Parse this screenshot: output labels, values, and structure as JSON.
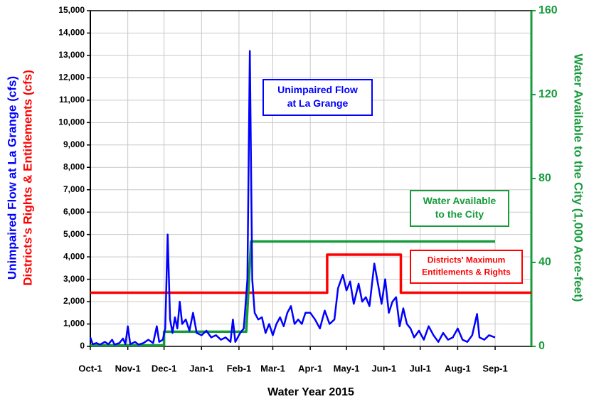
{
  "chart_data": {
    "type": "line",
    "xlabel": "Water Year 2015",
    "ylabel": [
      "Unimpaired Flow at La Grange (cfs)",
      "Districts's Rights & Entitlements (cfs)"
    ],
    "y2label": "Water Available to the City (1,000 Acre-feet)",
    "xlim": [
      0,
      365
    ],
    "xticks": [
      {
        "value": 0,
        "label": "Oct-1"
      },
      {
        "value": 31,
        "label": "Nov-1"
      },
      {
        "value": 61,
        "label": "Dec-1"
      },
      {
        "value": 92,
        "label": "Jan-1"
      },
      {
        "value": 123,
        "label": "Feb-1"
      },
      {
        "value": 151,
        "label": "Mar-1"
      },
      {
        "value": 182,
        "label": "Apr-1"
      },
      {
        "value": 212,
        "label": "May-1"
      },
      {
        "value": 243,
        "label": "Jun-1"
      },
      {
        "value": 273,
        "label": "Jul-1"
      },
      {
        "value": 304,
        "label": "Aug-1"
      },
      {
        "value": 335,
        "label": "Sep-1"
      }
    ],
    "ylim": [
      0,
      15000
    ],
    "yticks": [
      0,
      {
        "value": 1000,
        "label": "1,000"
      },
      {
        "value": 2000,
        "label": "2,000"
      },
      {
        "value": 3000,
        "label": "3,000"
      },
      {
        "value": 4000,
        "label": "4,000"
      },
      {
        "value": 5000,
        "label": "5,000"
      },
      {
        "value": 6000,
        "label": "6,000"
      },
      {
        "value": 7000,
        "label": "7,000"
      },
      {
        "value": 8000,
        "label": "8,000"
      },
      {
        "value": 9000,
        "label": "9,000"
      },
      {
        "value": 10000,
        "label": "10,000"
      },
      {
        "value": 11000,
        "label": "11,000"
      },
      {
        "value": 12000,
        "label": "12,000"
      },
      {
        "value": 13000,
        "label": "13,000"
      },
      {
        "value": 14000,
        "label": "14,000"
      },
      {
        "value": 15000,
        "label": "15,000"
      }
    ],
    "y2lim": [
      0,
      160
    ],
    "y2ticks": [
      0,
      40,
      80,
      120,
      160
    ],
    "grid": true,
    "series": [
      {
        "name": "Unimpaired Flow at La Grange",
        "color": "#0000ff",
        "x": [
          0,
          2,
          5,
          8,
          12,
          15,
          18,
          20,
          24,
          27,
          29,
          31,
          33,
          37,
          40,
          44,
          48,
          52,
          55,
          57,
          60,
          62,
          64,
          66,
          68,
          70,
          72,
          74,
          76,
          79,
          82,
          85,
          88,
          92,
          96,
          100,
          104,
          108,
          112,
          116,
          118,
          120,
          124,
          127,
          130,
          132,
          134,
          136,
          139,
          142,
          145,
          148,
          151,
          154,
          157,
          160,
          163,
          166,
          169,
          172,
          175,
          178,
          182,
          186,
          190,
          194,
          198,
          202,
          205,
          209,
          212,
          215,
          218,
          222,
          225,
          228,
          231,
          235,
          238,
          241,
          244,
          247,
          250,
          253,
          256,
          259,
          262,
          265,
          268,
          272,
          276,
          280,
          284,
          288,
          292,
          296,
          300,
          304,
          308,
          312,
          316,
          320,
          322,
          326,
          330,
          335
        ],
        "values": [
          400,
          100,
          150,
          80,
          200,
          100,
          300,
          80,
          150,
          350,
          100,
          900,
          100,
          200,
          80,
          150,
          300,
          150,
          900,
          200,
          300,
          800,
          5000,
          1200,
          600,
          1300,
          800,
          2000,
          1000,
          1200,
          700,
          1500,
          600,
          500,
          700,
          400,
          500,
          300,
          400,
          200,
          1200,
          200,
          600,
          800,
          3000,
          13200,
          3000,
          1500,
          1200,
          1300,
          600,
          1000,
          500,
          1000,
          1300,
          900,
          1500,
          1800,
          1000,
          1200,
          1000,
          1500,
          1500,
          1200,
          800,
          1600,
          1000,
          1200,
          2600,
          3200,
          2500,
          2900,
          1900,
          2800,
          2000,
          2200,
          1800,
          3700,
          2800,
          1900,
          3000,
          1500,
          2000,
          2200,
          900,
          1700,
          1000,
          800,
          400,
          700,
          300,
          900,
          500,
          200,
          600,
          300,
          400,
          800,
          300,
          200,
          500,
          1450,
          400,
          300,
          500,
          400
        ]
      },
      {
        "name": "Districts' Maximum Entitlements & Rights",
        "color": "#ff0000",
        "x": [
          0,
          196,
          196,
          257,
          257,
          365
        ],
        "values": [
          2400,
          2400,
          4100,
          4100,
          2400,
          2400
        ]
      },
      {
        "name": "Water Available to the City",
        "color": "#179b3c",
        "axis": "y2",
        "x": [
          0,
          61,
          61,
          129,
          133,
          335
        ],
        "values": [
          0.5,
          0.5,
          7,
          7,
          50,
          50
        ]
      }
    ],
    "annotations": [
      {
        "lines": [
          "Unimpaired Flow",
          "at La Grange"
        ],
        "color": "#0000ff"
      },
      {
        "lines": [
          "Water Available",
          "to the City"
        ],
        "color": "#179b3c"
      },
      {
        "lines": [
          "Districts' Maximum",
          "Entitlements & Rights"
        ],
        "color": "#ff0000"
      }
    ]
  }
}
